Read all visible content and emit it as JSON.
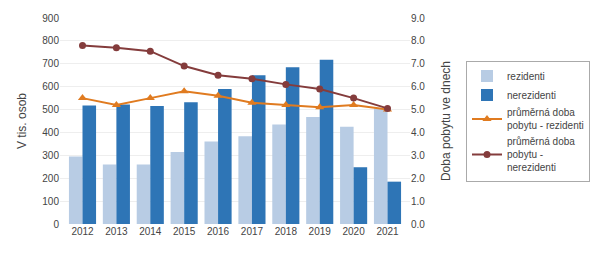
{
  "chart_data": {
    "type": "bar",
    "categories": [
      "2012",
      "2013",
      "2014",
      "2015",
      "2016",
      "2017",
      "2018",
      "2019",
      "2020",
      "2021"
    ],
    "series": [
      {
        "name": "rezidenti",
        "type": "bar",
        "color": "#b8cce4",
        "values": [
          295,
          260,
          260,
          315,
          360,
          383,
          435,
          468,
          425,
          505
        ]
      },
      {
        "name": "nerezidenti",
        "type": "bar",
        "color": "#2e75b6",
        "values": [
          518,
          522,
          515,
          532,
          590,
          650,
          685,
          718,
          248,
          185
        ]
      },
      {
        "name": "průměrná doba\npobytu - rezidenti",
        "type": "line",
        "axis": "y2",
        "color": "#e07b20",
        "marker": "triangle",
        "values": [
          5.5,
          5.2,
          5.5,
          5.8,
          5.6,
          5.3,
          5.2,
          5.1,
          5.2,
          5.0
        ]
      },
      {
        "name": "průměrná doba\npobytu -\nnerezidenti",
        "type": "line",
        "axis": "y2",
        "color": "#843c3c",
        "marker": "circle",
        "values": [
          7.8,
          7.7,
          7.55,
          6.9,
          6.5,
          6.35,
          6.1,
          5.9,
          5.5,
          5.05
        ]
      }
    ],
    "y_label": "V tis. osob",
    "y2_label": "Doba pobytu ve dnech",
    "ylim": [
      0,
      900
    ],
    "yticks": [
      0,
      100,
      200,
      300,
      400,
      500,
      600,
      700,
      800,
      900
    ],
    "y2lim": [
      0.0,
      9.0
    ],
    "y2ticks": [
      {
        "value": 0,
        "label": "0.0"
      },
      {
        "value": 1,
        "label": "1.0"
      },
      {
        "value": 2,
        "label": "2.0"
      },
      {
        "value": 3,
        "label": "3.0"
      },
      {
        "value": 4,
        "label": "4.0"
      },
      {
        "value": 5,
        "label": "5.0"
      },
      {
        "value": 6,
        "label": "6.0"
      },
      {
        "value": 7,
        "label": "7.0"
      },
      {
        "value": 8,
        "label": "8.0"
      },
      {
        "value": 9,
        "label": "9.0"
      }
    ],
    "grid": true,
    "legend": "right"
  }
}
